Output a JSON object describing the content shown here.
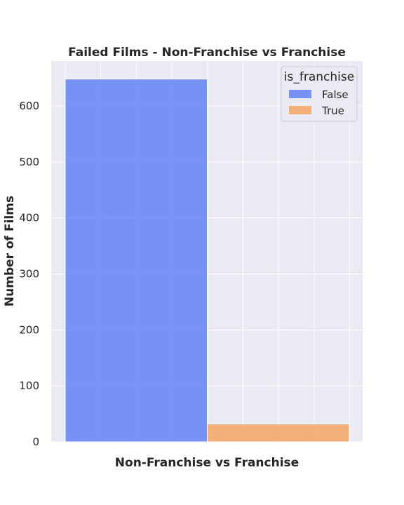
{
  "chart_data": {
    "type": "bar",
    "title": "Failed Films - Non-Franchise vs Franchise",
    "xlabel": "Non-Franchise vs Franchise",
    "ylabel": "Number of Films",
    "ylim": [
      0,
      680
    ],
    "yticks": [
      0,
      100,
      200,
      300,
      400,
      500,
      600
    ],
    "grid": true,
    "legend": {
      "title": "is_franchise",
      "placement": "top-right"
    },
    "series": [
      {
        "name": "False",
        "value": 648,
        "color": "#5a7cf5"
      },
      {
        "name": "True",
        "value": 32,
        "color": "#f5a05a"
      }
    ]
  }
}
